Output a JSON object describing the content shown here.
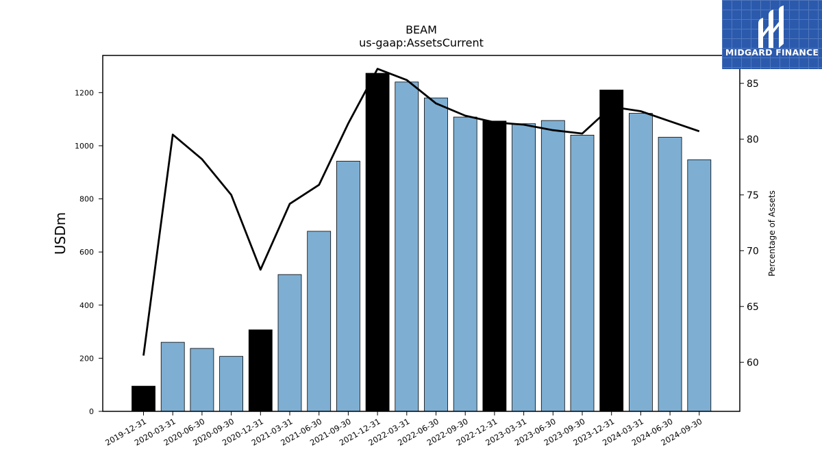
{
  "chart_data": {
    "type": "bar",
    "title": "BEAM",
    "subtitle": "us-gaap:AssetsCurrent",
    "ylabel": "USDm",
    "y2label": "Percentage of Assets",
    "categories": [
      "2019-12-31",
      "2020-03-31",
      "2020-06-30",
      "2020-09-30",
      "2020-12-31",
      "2021-03-31",
      "2021-06-30",
      "2021-09-30",
      "2021-12-31",
      "2022-03-31",
      "2022-06-30",
      "2022-09-30",
      "2022-12-31",
      "2023-03-31",
      "2023-06-30",
      "2023-09-30",
      "2023-12-31",
      "2024-03-31",
      "2024-06-30",
      "2024-09-30"
    ],
    "values": [
      95,
      260,
      237,
      207,
      307,
      515,
      678,
      942,
      1273,
      1240,
      1180,
      1108,
      1093,
      1083,
      1095,
      1040,
      1210,
      1122,
      1032,
      947
    ],
    "bar_colors": [
      "#000000",
      "#7eafd3",
      "#7eafd3",
      "#7eafd3",
      "#000000",
      "#7eafd3",
      "#7eafd3",
      "#7eafd3",
      "#000000",
      "#7eafd3",
      "#7eafd3",
      "#7eafd3",
      "#000000",
      "#7eafd3",
      "#7eafd3",
      "#7eafd3",
      "#000000",
      "#7eafd3",
      "#7eafd3",
      "#7eafd3"
    ],
    "line_values": [
      60.6,
      80.4,
      78.2,
      75.0,
      68.3,
      74.2,
      75.9,
      81.4,
      86.3,
      85.3,
      83.2,
      82.1,
      81.5,
      81.3,
      80.8,
      80.5,
      82.9,
      82.5,
      81.6,
      80.7
    ],
    "ylim": [
      0,
      1340
    ],
    "yticks": [
      0,
      200,
      400,
      600,
      800,
      1000,
      1200
    ],
    "y2lim": [
      55.6,
      87.5
    ],
    "y2ticks": [
      60,
      65,
      70,
      75,
      80,
      85
    ],
    "grid": false
  },
  "logo": {
    "text": "MIDGARD FINANCE",
    "background": "#2b5aad"
  }
}
